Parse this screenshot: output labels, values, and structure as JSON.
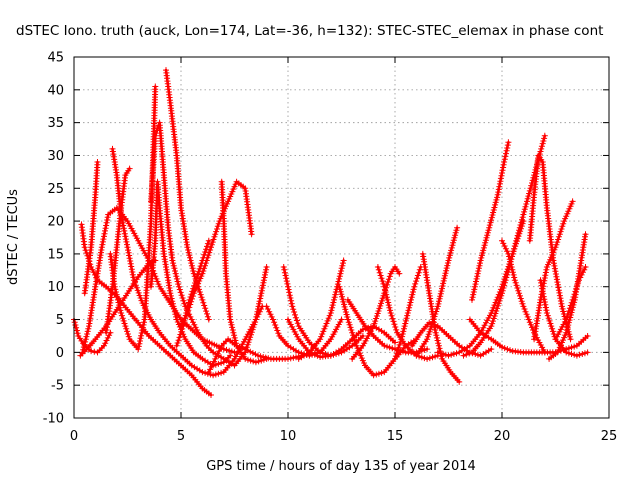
{
  "chart_data": {
    "type": "line",
    "title": "dSTEC Iono. truth (auck, Lon=174, Lat=-36, h=132): STEC-STEC_elemax in phase cont",
    "xlabel": "GPS time / hours of day 135 of year 2014",
    "ylabel": "dSTEC  / TECUs",
    "xlim": [
      0,
      25
    ],
    "ylim": [
      -10,
      45
    ],
    "xticks": [
      0,
      5,
      10,
      15,
      20,
      25
    ],
    "yticks": [
      -10,
      -5,
      0,
      5,
      10,
      15,
      20,
      25,
      30,
      35,
      40,
      45
    ],
    "grid": true,
    "marker": "+",
    "color": "#ff0000",
    "series": [
      {
        "x": [
          0.0,
          0.2,
          0.5,
          0.8,
          1.1,
          1.4,
          1.7
        ],
        "y": [
          5,
          2.5,
          1,
          0.2,
          0,
          1,
          3
        ]
      },
      {
        "x": [
          0.35,
          0.5,
          0.8,
          1.1,
          1.5,
          2.0,
          2.5,
          3.0,
          3.5,
          4.0,
          4.5,
          5.0,
          5.5,
          6.0,
          6.4
        ],
        "y": [
          19.5,
          16,
          13,
          11,
          10,
          8.5,
          6.5,
          4.5,
          2.5,
          1,
          -0.5,
          -2,
          -3.5,
          -5.5,
          -6.5
        ]
      },
      {
        "x": [
          0.3,
          0.6,
          1.0,
          1.5,
          2.0,
          2.5,
          3.0,
          3.5,
          3.8
        ],
        "y": [
          -0.5,
          0.5,
          2,
          4,
          6.5,
          9,
          11.5,
          13.5,
          14
        ]
      },
      {
        "x": [
          0.5,
          0.8,
          1.0,
          1.1
        ],
        "y": [
          9,
          16,
          24,
          29
        ]
      },
      {
        "x": [
          0.4,
          0.7,
          1.0,
          1.3,
          1.6,
          2.0,
          2.5,
          3.0,
          3.5,
          4.0,
          5.0,
          6.0,
          7.0,
          7.5
        ],
        "y": [
          0,
          4,
          10,
          16,
          21,
          22,
          20,
          17,
          14,
          10,
          5,
          2,
          0.5,
          0
        ]
      },
      {
        "x": [
          1.8,
          2.0,
          2.2,
          2.5,
          2.8,
          3.2,
          3.6,
          4.0,
          4.5,
          5.0,
          5.5,
          6.0,
          6.5,
          7.0,
          7.5,
          8.0,
          8.5,
          8.8
        ],
        "y": [
          31,
          27,
          21,
          16,
          11,
          7.5,
          5,
          3,
          1,
          -0.5,
          -2,
          -3,
          -3.5,
          -3,
          -1,
          2,
          5,
          7
        ]
      },
      {
        "x": [
          1.5,
          1.8,
          2.0,
          2.2,
          2.4,
          2.6
        ],
        "y": [
          3,
          10,
          16,
          22,
          27,
          28
        ]
      },
      {
        "x": [
          1.7,
          1.9,
          2.2,
          2.6,
          3.0,
          3.3,
          3.6,
          3.8
        ],
        "y": [
          15,
          10,
          6,
          2,
          0.5,
          5,
          20,
          40.5
        ]
      },
      {
        "x": [
          3.6,
          3.8,
          4.0,
          4.2,
          4.4,
          4.6,
          4.9,
          5.2,
          5.5,
          5.8,
          6.2,
          6.5,
          7.0,
          7.5,
          8.0,
          8.5,
          9.0
        ],
        "y": [
          23,
          33,
          35,
          27,
          19,
          14,
          10,
          7,
          5,
          3,
          1,
          0,
          -1,
          -2,
          0,
          5,
          13
        ]
      },
      {
        "x": [
          3.6,
          3.8,
          3.9,
          4.0,
          4.2,
          4.5,
          4.8,
          5.2,
          5.6,
          6.0,
          6.5,
          7.0,
          7.3
        ],
        "y": [
          10,
          17,
          26,
          22,
          15,
          9,
          5,
          2,
          0,
          -1,
          -2,
          -1.5,
          -0.5
        ]
      },
      {
        "x": [
          4.3,
          4.5,
          4.8,
          5.0,
          5.3,
          5.6,
          6.0,
          6.3
        ],
        "y": [
          43,
          38,
          30,
          22,
          16,
          12,
          8,
          5
        ]
      },
      {
        "x": [
          5.0,
          5.3,
          5.6,
          6.0,
          6.4,
          6.8,
          7.2,
          7.6,
          8.0,
          8.3
        ],
        "y": [
          4,
          6,
          9,
          12,
          16,
          20,
          23,
          26,
          25,
          18
        ]
      },
      {
        "x": [
          4.8,
          5.1,
          5.4,
          5.7,
          6.0,
          6.3
        ],
        "y": [
          1,
          4,
          8,
          11,
          14,
          17
        ]
      },
      {
        "x": [
          6.3,
          6.6,
          6.9,
          7.2,
          7.6,
          8.0,
          8.6,
          9.2,
          10.0,
          11.0,
          11.5
        ],
        "y": [
          -3,
          -1,
          1,
          2,
          1,
          0.5,
          -0.5,
          -1,
          -1,
          -0.3,
          0
        ]
      },
      {
        "x": [
          6.9,
          7.0,
          7.1,
          7.3,
          7.6,
          8.0,
          8.5,
          9.0
        ],
        "y": [
          26,
          20,
          12,
          5,
          1,
          -1,
          -1.5,
          -1
        ]
      },
      {
        "x": [
          9.0,
          9.3,
          9.6,
          10.0,
          10.5,
          11.0,
          11.5,
          12.0,
          12.5
        ],
        "y": [
          7,
          5,
          2.5,
          1,
          0,
          -0.5,
          0,
          2,
          5
        ]
      },
      {
        "x": [
          9.8,
          10.0,
          10.2,
          10.5,
          11.0,
          11.5,
          12.0,
          12.5,
          13.0,
          13.5
        ],
        "y": [
          13,
          10,
          7,
          4,
          1.5,
          0,
          -0.5,
          0,
          1,
          2.5
        ]
      },
      {
        "x": [
          10.0,
          10.5,
          11.0,
          11.5,
          12.0,
          12.5,
          13.0,
          13.5,
          14.0,
          14.5,
          15.0
        ],
        "y": [
          5,
          2,
          0,
          -0.7,
          -0.5,
          0.5,
          2,
          3.5,
          4,
          3,
          1.5
        ]
      },
      {
        "x": [
          10.5,
          11.0,
          11.5,
          12.0,
          12.3,
          12.6
        ],
        "y": [
          -1,
          0,
          2,
          6,
          10,
          14
        ]
      },
      {
        "x": [
          12.4,
          12.8,
          13.2,
          13.6,
          14.0,
          14.5,
          15.0,
          15.5,
          16.0
        ],
        "y": [
          10,
          5,
          1,
          -2,
          -3.5,
          -3,
          -1,
          1,
          2
        ]
      },
      {
        "x": [
          12.8,
          13.2,
          13.6,
          14.0,
          14.5,
          15.0,
          15.5,
          16.0,
          16.5
        ],
        "y": [
          8,
          6,
          4,
          2.5,
          1,
          0.5,
          0,
          0,
          0.5
        ]
      },
      {
        "x": [
          13.0,
          13.5,
          14.0,
          14.5,
          14.8,
          15.0,
          15.2
        ],
        "y": [
          -1,
          1,
          4,
          9,
          12,
          13,
          12
        ]
      },
      {
        "x": [
          14.2,
          14.5,
          14.8,
          15.1,
          15.5,
          16.0,
          16.5,
          17.0
        ],
        "y": [
          13,
          10,
          6,
          3,
          1,
          -0.5,
          -1,
          -0.5
        ]
      },
      {
        "x": [
          15.0,
          15.3,
          15.6,
          15.9,
          16.2
        ],
        "y": [
          -1,
          2,
          6,
          10,
          13
        ]
      },
      {
        "x": [
          16.3,
          16.6,
          16.9,
          17.2,
          17.6,
          18.0
        ],
        "y": [
          15,
          9,
          3,
          -1,
          -3,
          -4.5
        ]
      },
      {
        "x": [
          16.0,
          16.5,
          17.0,
          17.5,
          17.9
        ],
        "y": [
          -0.5,
          2,
          7,
          14,
          19
        ]
      },
      {
        "x": [
          15.8,
          16.2,
          16.6,
          17.0,
          17.5,
          18.0,
          18.5,
          19.0,
          19.5
        ],
        "y": [
          1,
          3,
          4.5,
          4,
          2.5,
          1,
          0,
          -0.5,
          0.5
        ]
      },
      {
        "x": [
          17.0,
          17.5,
          18.0,
          18.5,
          19.0,
          19.5,
          20.0,
          20.5,
          21.0
        ],
        "y": [
          0,
          -0.5,
          0,
          1,
          3,
          6,
          10,
          15,
          20
        ]
      },
      {
        "x": [
          18.2,
          18.6,
          19.0,
          19.5,
          20.0,
          20.5,
          21.0,
          21.5,
          22.0
        ],
        "y": [
          -0.5,
          0,
          1.5,
          4,
          9,
          15,
          21,
          27,
          33
        ]
      },
      {
        "x": [
          18.6,
          19.0,
          19.4,
          19.8,
          20.1,
          20.3
        ],
        "y": [
          8,
          14,
          19,
          24,
          29,
          32
        ]
      },
      {
        "x": [
          18.5,
          19.0,
          19.5,
          20.0,
          20.5,
          21.0,
          21.5,
          22.0,
          22.5,
          23.0,
          23.5,
          24.0
        ],
        "y": [
          5,
          3,
          2,
          0.8,
          0.2,
          0,
          0,
          0,
          0,
          0.5,
          1,
          2.5
        ]
      },
      {
        "x": [
          20.0,
          20.3,
          20.6,
          21.0,
          21.5,
          22.0
        ],
        "y": [
          17,
          15,
          11,
          7,
          3,
          0
        ]
      },
      {
        "x": [
          21.3,
          21.5,
          21.7,
          21.9,
          22.1,
          22.4,
          22.8,
          23.2
        ],
        "y": [
          17,
          24,
          30,
          29,
          22,
          14,
          7,
          2
        ]
      },
      {
        "x": [
          21.5,
          21.8,
          22.1,
          22.5,
          22.9,
          23.3
        ],
        "y": [
          2,
          8,
          13,
          16,
          20,
          23
        ]
      },
      {
        "x": [
          21.8,
          22.1,
          22.5,
          23.0,
          23.5,
          24.0
        ],
        "y": [
          11,
          6,
          2,
          0,
          -0.5,
          0
        ]
      },
      {
        "x": [
          22.2,
          22.6,
          23.0,
          23.4,
          23.7,
          23.9
        ],
        "y": [
          -1,
          0,
          3,
          8,
          14,
          18
        ]
      },
      {
        "x": [
          22.5,
          23.0,
          23.3,
          23.6,
          23.9
        ],
        "y": [
          2,
          5,
          8,
          11,
          13
        ]
      }
    ]
  }
}
